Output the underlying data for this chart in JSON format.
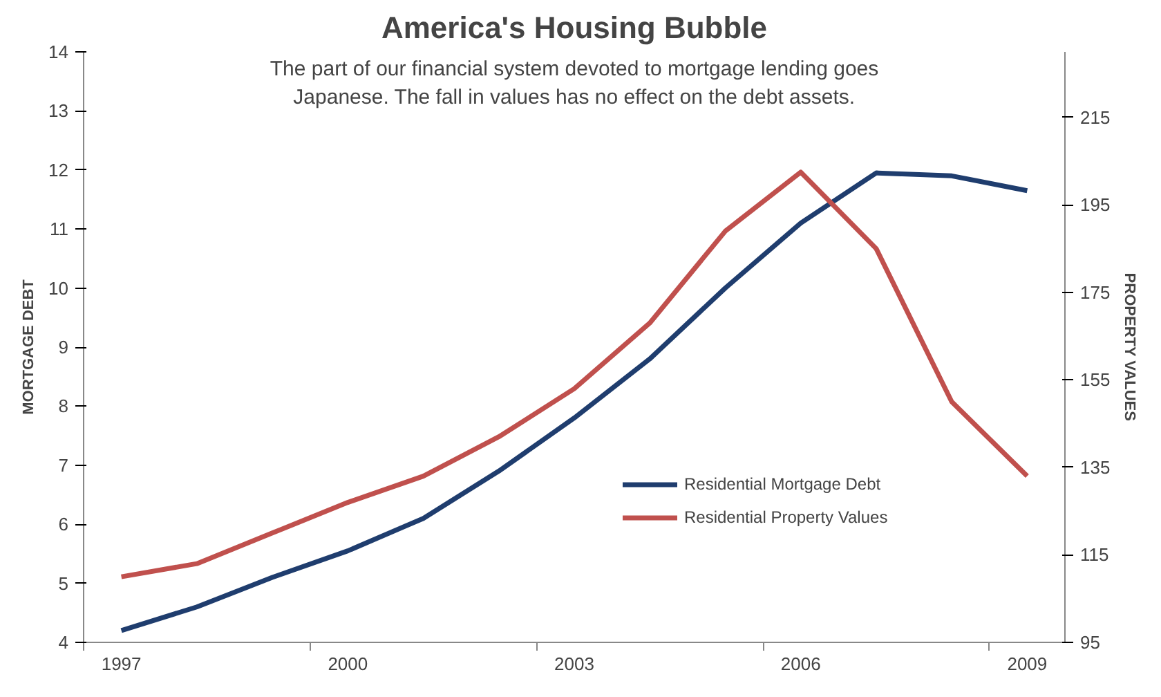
{
  "chart_data": {
    "type": "line",
    "title": "America's Housing Bubble",
    "subtitle": "The part of our financial system devoted to mortgage lending goes Japanese. The fall in values has no effect on the debt assets.",
    "ylabel": "MORTGAGE DEBT",
    "y2label": "PROPERTY VALUES",
    "categories": [
      "1997",
      null,
      null,
      "2000",
      null,
      null,
      "2003",
      null,
      null,
      "2006",
      null,
      null,
      "2009"
    ],
    "series": [
      {
        "name": "Residential Mortgage Debt",
        "color": "#1f3d6e",
        "values": [
          4.2,
          4.6,
          5.1,
          5.55,
          6.1,
          6.9,
          7.8,
          8.8,
          10.0,
          11.1,
          11.95,
          11.9,
          11.65
        ]
      },
      {
        "name": "Residential Property Values",
        "color": "#c0504d",
        "axis": "y2",
        "values": [
          110,
          113,
          120,
          127,
          133,
          142,
          153,
          168,
          189,
          202.5,
          185,
          150,
          133
        ]
      }
    ],
    "ylim": [
      4,
      14
    ],
    "yticks": [
      4,
      5,
      6,
      7,
      8,
      9,
      10,
      11,
      12,
      13,
      14
    ],
    "y2lim": [
      95,
      230
    ],
    "y2ticks": [
      95,
      115,
      135,
      155,
      175,
      195,
      215
    ],
    "grid": false,
    "legend": "right",
    "marker": "none",
    "line_style": "solid"
  }
}
